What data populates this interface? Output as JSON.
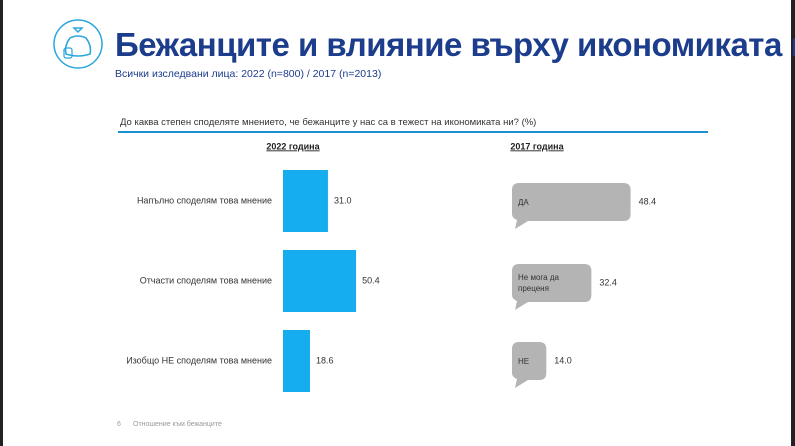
{
  "header": {
    "title": "Бежанците и влияние върху икономиката ни",
    "subtitle": "Всички изследвани лица: 2022  (n=800) / 2017 (n=2013)"
  },
  "question": "До каква степен споделяте мнението, че бежанците у нас са в тежест на икономиката ни? (%)",
  "chart_data": [
    {
      "type": "bar",
      "title": "2022 година",
      "categories": [
        "Напълно споделям това мнение",
        "Отчасти споделям това мнение",
        "Изобщо НЕ споделям това мнение"
      ],
      "values": [
        31.0,
        50.4,
        18.6
      ],
      "value_labels": [
        "31.0",
        "50.4",
        "18.6"
      ],
      "color": "#16adef"
    },
    {
      "type": "callout",
      "title": "2017 година",
      "categories": [
        "ДА",
        "Не мога да преценя",
        "НЕ"
      ],
      "values": [
        48.4,
        32.4,
        14.0
      ],
      "value_labels": [
        "48.4",
        "32.4",
        "14.0"
      ],
      "color": "#b4b4b4"
    }
  ],
  "footer": {
    "page": "6",
    "text": "Отношение към бежанците"
  }
}
